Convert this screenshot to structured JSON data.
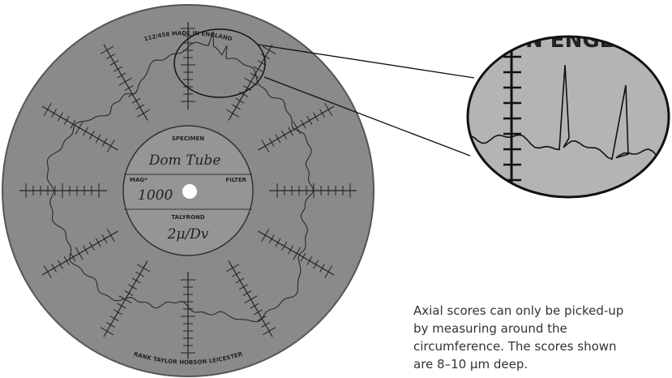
{
  "figure": {
    "chart": {
      "top_label": "112/458 MADE IN ENGLAND",
      "bottom_label": "RANK TAYLOR HOBSON LEICESTER",
      "specimen_label": "SPECIMEN",
      "specimen_value": "Dom Tube",
      "mag_label": "MAG*",
      "filter_label": "FILTER",
      "mag_value": "1000",
      "talyrond_label": "TALYROND",
      "talyrond_value": "2μ/Dv"
    },
    "zoom_label": "N ENGLAND",
    "caption": [
      "Axial scores can only be picked-up",
      "by measuring around the",
      "circumference. The scores shown",
      "are 8–10 μm deep."
    ]
  }
}
